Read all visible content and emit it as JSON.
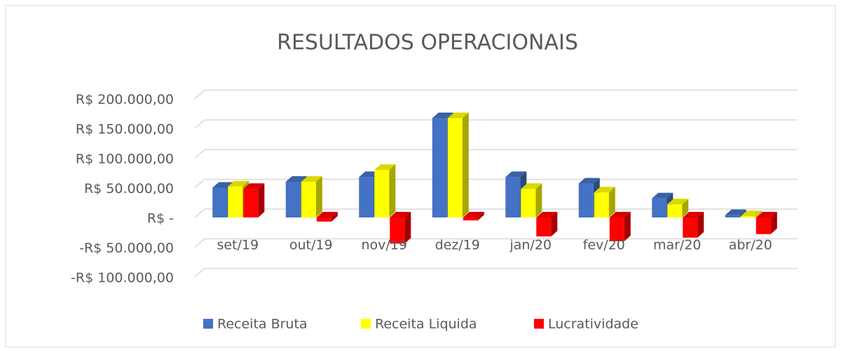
{
  "chart_data": {
    "type": "bar",
    "title": "RESULTADOS OPERACIONAIS",
    "categories": [
      "set/19",
      "out/19",
      "nov/19",
      "dez/19",
      "jan/20",
      "fev/20",
      "mar/20",
      "abr/20"
    ],
    "series": [
      {
        "name": "Receita Bruta",
        "color": "#4472c4",
        "values": [
          50000,
          60000,
          68000,
          167000,
          68000,
          57000,
          32000,
          4000
        ]
      },
      {
        "name": "Receita Liquida",
        "color": "#ffff00",
        "values": [
          52000,
          60000,
          80000,
          167000,
          48000,
          42000,
          22000,
          2000
        ]
      },
      {
        "name": "Lucratividade",
        "color": "#ff0000",
        "values": [
          48000,
          -7000,
          -44000,
          -5000,
          -32000,
          -40000,
          -34000,
          -28000
        ]
      }
    ],
    "ylim": [
      -100000,
      200000
    ],
    "yticks": [
      {
        "value": 200000,
        "label": "R$ 200.000,00"
      },
      {
        "value": 150000,
        "label": "R$ 150.000,00"
      },
      {
        "value": 100000,
        "label": "R$ 100.000,00"
      },
      {
        "value": 50000,
        "label": "R$ 50.000,00"
      },
      {
        "value": 0,
        "label": "R$ -"
      },
      {
        "value": -50000,
        "label": "-R$ 50.000,00"
      },
      {
        "value": -100000,
        "label": "-R$ 100.000,00"
      }
    ],
    "grid": true
  }
}
